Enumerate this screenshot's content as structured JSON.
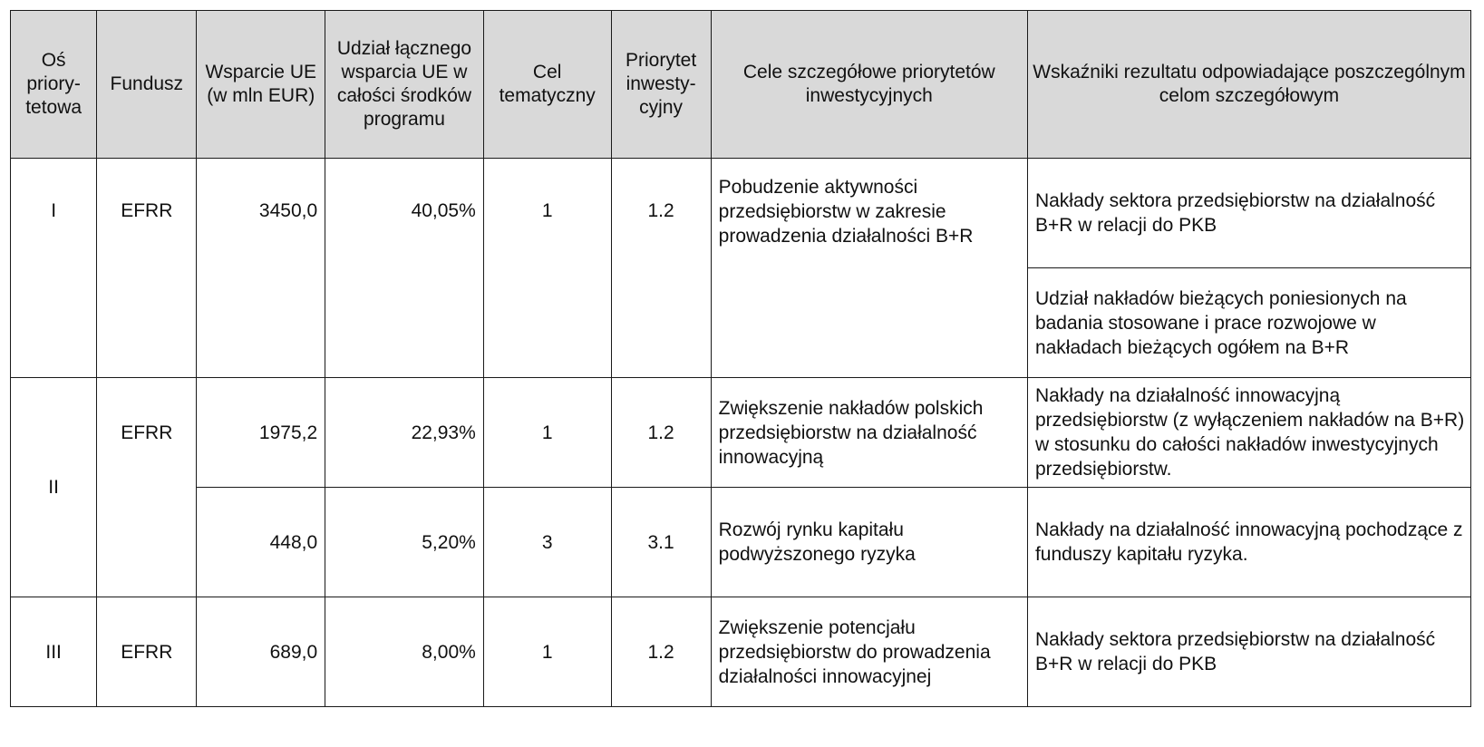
{
  "table": {
    "headers": [
      "Oś priory-tetowa",
      "Fundusz",
      "Wsparcie UE (w mln EUR)",
      "Udział łącznego wsparcia UE w całości środków programu",
      "Cel tematyczny",
      "Priorytet inwesty-cyjny",
      "Cele szczegółowe priorytetów inwestycyjnych",
      "Wskaźniki rezultatu odpowiadające poszczególnym celom szczegółowym"
    ],
    "rows": [
      {
        "axis": "I",
        "fund": "EFRR",
        "support": "3450,0",
        "share": "40,05%",
        "goal": "1",
        "priority": "1.2",
        "objective": "Pobudzenie aktywności przedsiębiorstw w zakresie prowadzenia działalności B+R",
        "indicators": [
          "Nakłady sektora przedsiębiorstw na działalność B+R w relacji do PKB",
          "Udział nakładów bieżących poniesionych na badania stosowane i prace rozwojowe w nakładach bieżących ogółem na B+R"
        ]
      },
      {
        "axis": "II",
        "fund": "EFRR",
        "support": "1975,2",
        "share": "22,93%",
        "goal": "1",
        "priority": "1.2",
        "objective": "Zwiększenie nakładów polskich przedsiębiorstw na działalność innowacyjną",
        "indicators": [
          "Nakłady na działalność innowacyjną przedsiębiorstw (z wyłączeniem nakładów na B+R) w stosunku do całości nakładów inwestycyjnych przedsiębiorstw."
        ]
      },
      {
        "support": "448,0",
        "share": "5,20%",
        "goal": "3",
        "priority": "3.1",
        "objective": "Rozwój rynku kapitału podwyższonego ryzyka",
        "indicators": [
          "Nakłady na działalność innowacyjną pochodzące z funduszy kapitału ryzyka."
        ]
      },
      {
        "axis": "III",
        "fund": "EFRR",
        "support": "689,0",
        "share": "8,00%",
        "goal": "1",
        "priority": "1.2",
        "objective": "Zwiększenie potencjału przedsiębiorstw do prowadzenia działalności innowacyjnej",
        "indicators": [
          "Nakłady sektora przedsiębiorstw na działalność B+R w relacji do PKB"
        ]
      }
    ]
  }
}
